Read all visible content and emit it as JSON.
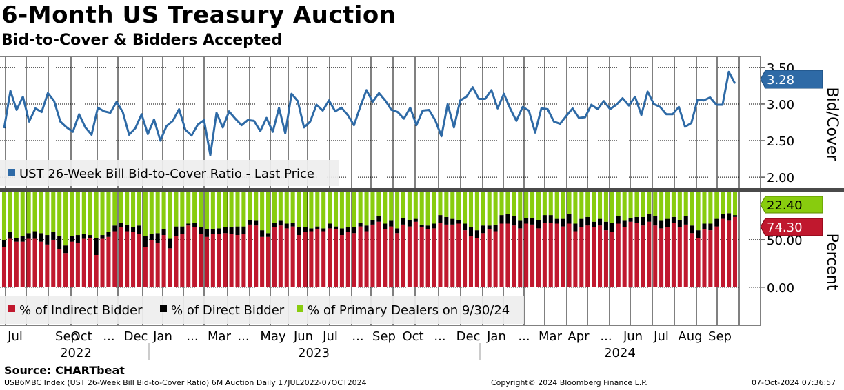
{
  "header": {
    "title": "6-Month US Treasury Auction",
    "subtitle": "Bid-to-Cover & Bidders Accepted"
  },
  "footer": {
    "source": "Source: CHARTbeat",
    "index_info": "USB6MBC Index (UST 26-Week Bill Bid-to-Cover Ratio) 6M Auction  Daily 17JUL2022-07OCT2024",
    "copyright": "Copyright© 2024 Bloomberg Finance L.P.",
    "timestamp": "07-Oct-2024 07:36:57"
  },
  "colors": {
    "line": "#2e6aa6",
    "indirect": "#c0182e",
    "direct": "#000000",
    "primary": "#88cc0e",
    "legend_bg": "#eeeeee"
  },
  "x_axis": {
    "month_labels": [
      "Jul",
      "Sep",
      "Oct",
      "...",
      "Dec",
      "Jan",
      "...",
      "Mar",
      "...",
      "May",
      "Jun",
      "Jul",
      "...",
      "Sep",
      "Oct",
      "...",
      "Dec",
      "Jan",
      "...",
      "Mar",
      "Apr",
      "...",
      "Jun",
      "Jul",
      "Aug",
      "Sep"
    ],
    "year_labels": [
      "2022",
      "2023",
      "2024"
    ]
  },
  "chart_data": [
    {
      "type": "line",
      "title": "Bid-to-Cover",
      "ylabel": "Bid/Cover",
      "ylim": [
        1.85,
        3.65
      ],
      "yticks": [
        "2.00",
        "2.50",
        "3.00",
        "3.50"
      ],
      "legend": [
        "UST 26-Week Bill Bid-to-Cover Ratio - Last Price"
      ],
      "last_value_label": "3.28",
      "series": [
        {
          "name": "UST 26-Week Bill Bid-to-Cover Ratio - Last Price",
          "values": [
            2.67,
            3.18,
            2.92,
            3.1,
            2.76,
            2.94,
            2.89,
            3.15,
            3.04,
            2.76,
            2.68,
            2.62,
            2.86,
            2.68,
            2.58,
            2.95,
            2.9,
            2.88,
            3.03,
            2.89,
            2.58,
            2.67,
            2.86,
            2.59,
            2.79,
            2.5,
            2.7,
            2.77,
            2.93,
            2.65,
            2.57,
            2.72,
            2.78,
            2.3,
            2.88,
            2.68,
            2.9,
            2.8,
            2.71,
            2.78,
            2.77,
            2.63,
            2.81,
            2.62,
            2.95,
            2.6,
            3.14,
            3.04,
            2.68,
            2.76,
            2.99,
            2.91,
            3.05,
            2.9,
            2.95,
            2.85,
            2.71,
            2.96,
            3.19,
            3.03,
            3.15,
            3.05,
            2.92,
            2.89,
            2.8,
            2.95,
            2.71,
            2.91,
            2.92,
            2.78,
            2.56,
            3.0,
            2.68,
            3.05,
            3.1,
            3.23,
            3.07,
            3.07,
            3.19,
            2.94,
            3.14,
            2.94,
            2.77,
            2.96,
            2.91,
            2.61,
            2.94,
            2.93,
            2.76,
            2.73,
            2.84,
            2.94,
            2.81,
            2.82,
            2.99,
            2.93,
            3.04,
            2.93,
            2.99,
            3.08,
            2.98,
            3.1,
            2.85,
            3.17,
            3.0,
            2.96,
            2.86,
            2.86,
            2.96,
            2.69,
            2.74,
            3.06,
            3.05,
            3.09,
            2.99,
            2.99,
            3.44,
            3.28
          ]
        }
      ]
    },
    {
      "type": "bar",
      "stacked": true,
      "title": "Bidders Accepted",
      "ylabel": "Percent",
      "ylim": [
        -40,
        100
      ],
      "yticks": [
        "0.00",
        "50.00"
      ],
      "legend": [
        "% of Indirect Bidder",
        "% of Direct Bidder",
        "% of Primary Dealers on 9/30/24"
      ],
      "last_value_labels": {
        "primary": "22.40",
        "indirect": "74.30"
      },
      "total": 100,
      "series": [
        {
          "name": "% of Indirect Bidder",
          "values": [
            42,
            51,
            48,
            48,
            51,
            51,
            48,
            45,
            50,
            40,
            36,
            48,
            47,
            51,
            52,
            34,
            51,
            53,
            59,
            63,
            59,
            58,
            56,
            42,
            50,
            47,
            55,
            41,
            54,
            56,
            65,
            63,
            56,
            53,
            56,
            56,
            57,
            56,
            55,
            56,
            66,
            65,
            53,
            53,
            63,
            65,
            62,
            64,
            55,
            58,
            59,
            61,
            59,
            62,
            61,
            55,
            58,
            57,
            64,
            59,
            66,
            69,
            61,
            64,
            57,
            66,
            64,
            69,
            63,
            61,
            62,
            68,
            66,
            66,
            67,
            60,
            54,
            52,
            57,
            61,
            59,
            67,
            67,
            65,
            62,
            67,
            66,
            62,
            68,
            68,
            67,
            64,
            67,
            59,
            63,
            65,
            63,
            65,
            60,
            58,
            67,
            63,
            69,
            68,
            65,
            69,
            65,
            62,
            63,
            68,
            63,
            66,
            57,
            52,
            61,
            60,
            64,
            72,
            70,
            74
          ]
        },
        {
          "name": "% of Direct Bidder",
          "values": [
            8,
            7,
            4,
            6,
            6,
            8,
            9,
            10,
            8,
            14,
            8,
            6,
            8,
            5,
            3,
            18,
            4,
            5,
            6,
            5,
            7,
            5,
            9,
            12,
            6,
            10,
            6,
            10,
            10,
            8,
            2,
            5,
            7,
            8,
            5,
            6,
            6,
            7,
            9,
            8,
            5,
            5,
            7,
            4,
            5,
            5,
            5,
            4,
            8,
            5,
            3,
            3,
            3,
            5,
            3,
            7,
            5,
            6,
            4,
            6,
            5,
            6,
            6,
            6,
            5,
            7,
            7,
            3,
            3,
            4,
            5,
            8,
            8,
            6,
            4,
            7,
            9,
            8,
            8,
            4,
            7,
            9,
            10,
            10,
            8,
            6,
            7,
            9,
            8,
            8,
            5,
            8,
            10,
            8,
            9,
            9,
            6,
            7,
            9,
            10,
            8,
            7,
            4,
            6,
            9,
            8,
            10,
            8,
            9,
            6,
            8,
            9,
            8,
            8,
            6,
            7,
            8,
            5,
            8,
            2
          ]
        }
      ]
    }
  ]
}
